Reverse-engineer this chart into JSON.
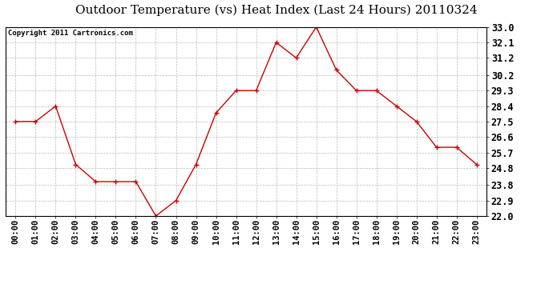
{
  "title": "Outdoor Temperature (vs) Heat Index (Last 24 Hours) 20110324",
  "copyright_text": "Copyright 2011 Cartronics.com",
  "hours": [
    "00:00",
    "01:00",
    "02:00",
    "03:00",
    "04:00",
    "05:00",
    "06:00",
    "07:00",
    "08:00",
    "09:00",
    "10:00",
    "11:00",
    "12:00",
    "13:00",
    "14:00",
    "15:00",
    "16:00",
    "17:00",
    "18:00",
    "19:00",
    "20:00",
    "21:00",
    "22:00",
    "23:00"
  ],
  "values": [
    27.5,
    27.5,
    28.4,
    25.0,
    24.0,
    24.0,
    24.0,
    22.0,
    22.9,
    25.0,
    28.0,
    29.3,
    29.3,
    32.1,
    31.2,
    33.0,
    30.5,
    29.3,
    29.3,
    28.4,
    27.5,
    26.0,
    26.0,
    25.0
  ],
  "line_color": "#cc0000",
  "marker": "+",
  "marker_size": 5,
  "bg_color": "#ffffff",
  "grid_color": "#bbbbbb",
  "ylim_min": 22.0,
  "ylim_max": 33.0,
  "yticks": [
    22.0,
    22.9,
    23.8,
    24.8,
    25.7,
    26.6,
    27.5,
    28.4,
    29.3,
    30.2,
    31.2,
    32.1,
    33.0
  ],
  "title_fontsize": 11,
  "tick_fontsize": 7.5,
  "copyright_fontsize": 6.5
}
